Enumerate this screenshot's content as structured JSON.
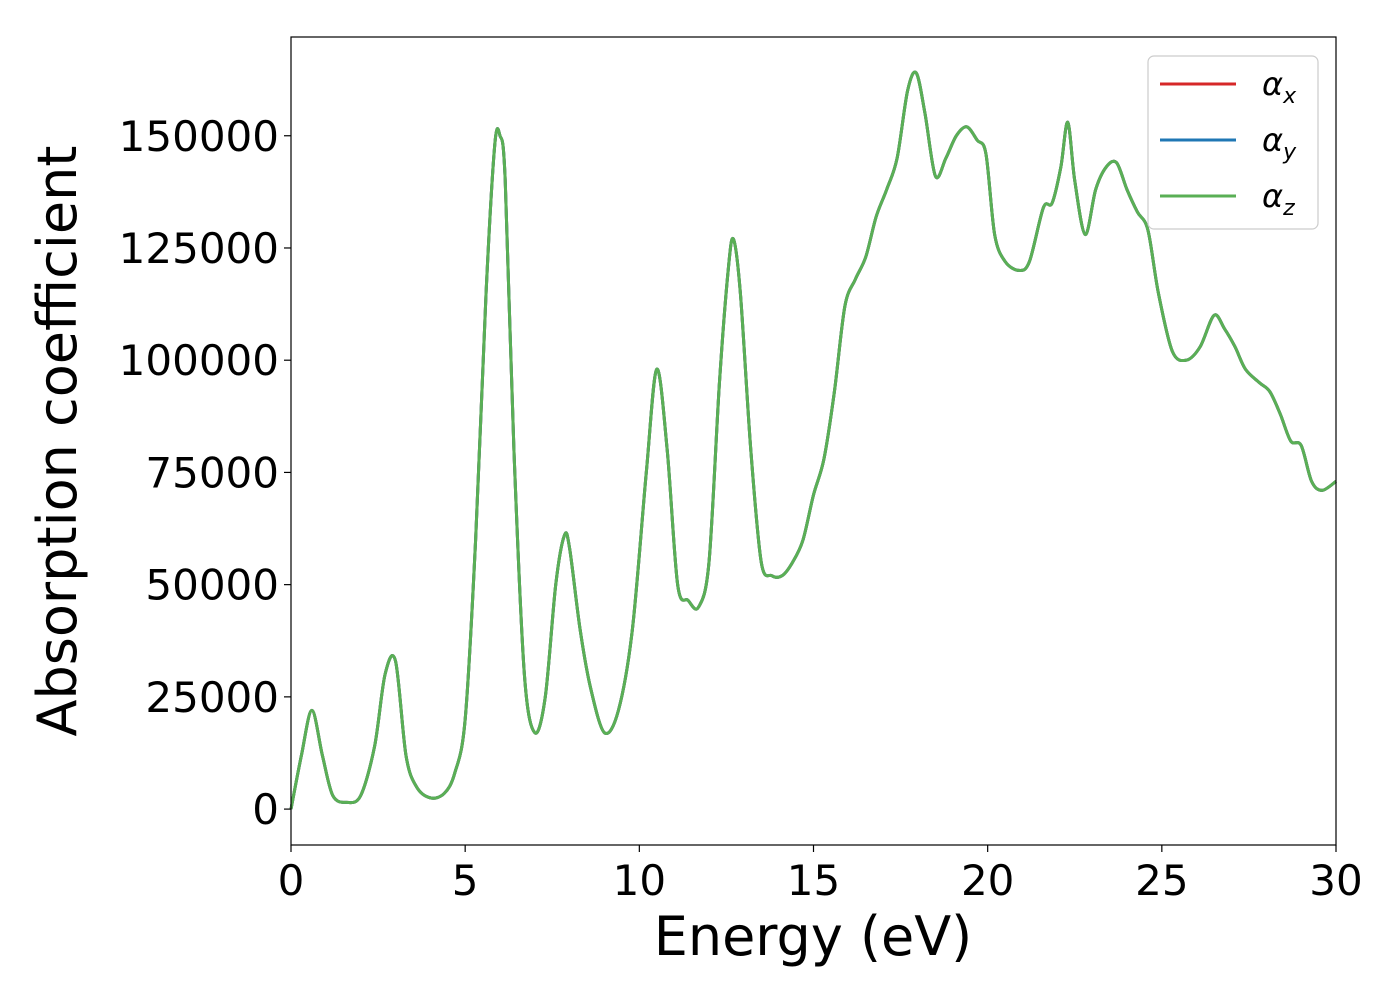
{
  "chart_data": {
    "type": "line",
    "title": "",
    "xlabel": "Energy (eV)",
    "ylabel": "Absorption coefficient",
    "xlim": [
      0,
      30
    ],
    "ylim": [
      -8000,
      172000
    ],
    "xticks": [
      0,
      5,
      10,
      15,
      20,
      25,
      30
    ],
    "xtick_labels": [
      "0",
      "5",
      "10",
      "15",
      "20",
      "25",
      "30"
    ],
    "yticks": [
      0,
      25000,
      50000,
      75000,
      100000,
      125000,
      150000
    ],
    "ytick_labels": [
      "0",
      "25000",
      "50000",
      "75000",
      "100000",
      "125000",
      "150000"
    ],
    "grid": false,
    "legend_position": "top-right",
    "x": [
      0.0,
      0.3,
      0.6,
      0.9,
      1.2,
      1.6,
      2.0,
      2.4,
      2.7,
      3.0,
      3.3,
      3.6,
      4.0,
      4.4,
      4.7,
      5.0,
      5.3,
      5.6,
      5.85,
      6.0,
      6.15,
      6.4,
      6.7,
      7.0,
      7.3,
      7.6,
      7.85,
      8.0,
      8.3,
      8.6,
      9.0,
      9.4,
      9.8,
      10.2,
      10.5,
      10.8,
      11.1,
      11.4,
      11.7,
      12.0,
      12.3,
      12.55,
      12.7,
      12.9,
      13.2,
      13.5,
      13.8,
      14.1,
      14.4,
      14.7,
      15.0,
      15.3,
      15.6,
      15.9,
      16.2,
      16.5,
      16.8,
      17.1,
      17.4,
      17.7,
      17.95,
      18.2,
      18.5,
      18.8,
      19.1,
      19.4,
      19.7,
      19.95,
      20.2,
      20.5,
      20.9,
      21.2,
      21.6,
      21.85,
      22.1,
      22.3,
      22.5,
      22.8,
      23.1,
      23.4,
      23.7,
      24.0,
      24.3,
      24.6,
      24.9,
      25.3,
      25.7,
      26.1,
      26.5,
      26.8,
      27.1,
      27.4,
      27.8,
      28.1,
      28.4,
      28.7,
      29.0,
      29.3,
      29.6,
      30.0
    ],
    "series": [
      {
        "name": "αx",
        "label_base": "α",
        "label_sub": "x",
        "color": "#d62728",
        "values": [
          0,
          12000,
          22000,
          12000,
          3000,
          1500,
          3000,
          14000,
          30000,
          33000,
          12000,
          5000,
          2500,
          3500,
          8000,
          20000,
          60000,
          115000,
          148000,
          150000,
          140000,
          80000,
          30000,
          17000,
          25000,
          50000,
          61000,
          58000,
          40000,
          27000,
          17000,
          22000,
          40000,
          75000,
          98000,
          80000,
          50000,
          46500,
          45000,
          55000,
          95000,
          120000,
          127000,
          115000,
          80000,
          55000,
          52000,
          52000,
          55000,
          60000,
          70000,
          78000,
          93000,
          112000,
          118000,
          123000,
          132000,
          138000,
          145000,
          160000,
          164000,
          155000,
          141000,
          145000,
          150000,
          152000,
          149000,
          146000,
          128000,
          122000,
          120000,
          122000,
          134000,
          135000,
          143000,
          153000,
          140000,
          128000,
          138000,
          143000,
          144000,
          138000,
          133000,
          129000,
          115000,
          102000,
          100000,
          103000,
          110000,
          107000,
          103000,
          98000,
          95000,
          93000,
          88000,
          82000,
          81000,
          73000,
          71000,
          73000
        ]
      },
      {
        "name": "αy",
        "label_base": "α",
        "label_sub": "y",
        "color": "#1f77b4",
        "values": [
          0,
          12000,
          22000,
          12000,
          3000,
          1500,
          3000,
          14000,
          30000,
          33000,
          12000,
          5000,
          2500,
          3500,
          8000,
          20000,
          60000,
          115000,
          148000,
          150000,
          140000,
          80000,
          30000,
          17000,
          25000,
          50000,
          61000,
          58000,
          40000,
          27000,
          17000,
          22000,
          40000,
          75000,
          98000,
          80000,
          50000,
          46500,
          45000,
          55000,
          95000,
          120000,
          127000,
          115000,
          80000,
          55000,
          52000,
          52000,
          55000,
          60000,
          70000,
          78000,
          93000,
          112000,
          118000,
          123000,
          132000,
          138000,
          145000,
          160000,
          164000,
          155000,
          141000,
          145000,
          150000,
          152000,
          149000,
          146000,
          128000,
          122000,
          120000,
          122000,
          134000,
          135000,
          143000,
          153000,
          140000,
          128000,
          138000,
          143000,
          144000,
          138000,
          133000,
          129000,
          115000,
          102000,
          100000,
          103000,
          110000,
          107000,
          103000,
          98000,
          95000,
          93000,
          88000,
          82000,
          81000,
          73000,
          71000,
          73000
        ]
      },
      {
        "name": "αz",
        "label_base": "α",
        "label_sub": "z",
        "color": "#5aaf55",
        "values": [
          0,
          12000,
          22000,
          12000,
          3000,
          1500,
          3000,
          14000,
          30000,
          33000,
          12000,
          5000,
          2500,
          3500,
          8000,
          20000,
          60000,
          115000,
          148000,
          150000,
          140000,
          80000,
          30000,
          17000,
          25000,
          50000,
          61000,
          58000,
          40000,
          27000,
          17000,
          22000,
          40000,
          75000,
          98000,
          80000,
          50000,
          46500,
          45000,
          55000,
          95000,
          120000,
          127000,
          115000,
          80000,
          55000,
          52000,
          52000,
          55000,
          60000,
          70000,
          78000,
          93000,
          112000,
          118000,
          123000,
          132000,
          138000,
          145000,
          160000,
          164000,
          155000,
          141000,
          145000,
          150000,
          152000,
          149000,
          146000,
          128000,
          122000,
          120000,
          122000,
          134000,
          135000,
          143000,
          153000,
          140000,
          128000,
          138000,
          143000,
          144000,
          138000,
          133000,
          129000,
          115000,
          102000,
          100000,
          103000,
          110000,
          107000,
          103000,
          98000,
          95000,
          93000,
          88000,
          82000,
          81000,
          73000,
          71000,
          73000
        ]
      }
    ]
  }
}
